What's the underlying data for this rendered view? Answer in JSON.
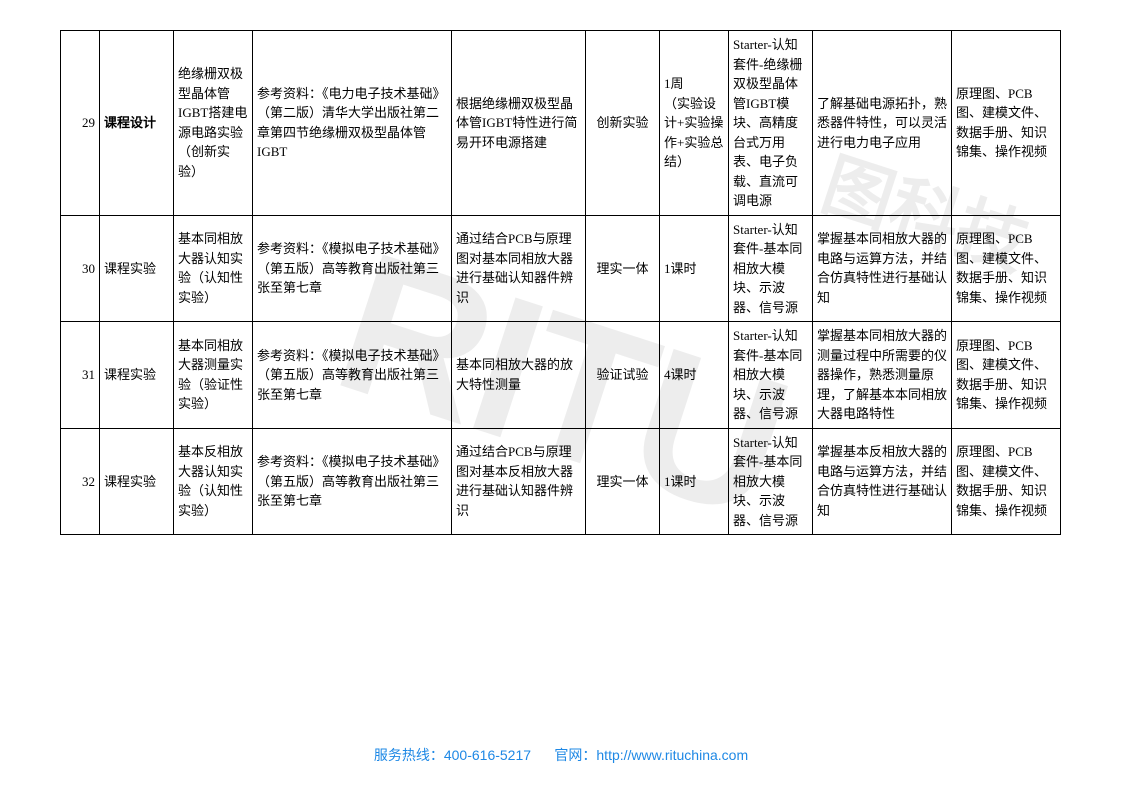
{
  "watermark_latin": "RITU",
  "watermark_cn": "图科技",
  "footer": {
    "hotline_label": "服务热线：",
    "hotline_number": "400-616-5217",
    "site_label": "官网：",
    "site_url": "http://www.rituchina.com"
  },
  "table": {
    "columns": [
      "seq",
      "category",
      "name",
      "reference",
      "content",
      "type",
      "duration",
      "equipment",
      "objective",
      "materials"
    ],
    "rows": [
      {
        "seq": "29",
        "category": "课程设计",
        "category_bold": true,
        "name": "绝缘栅双极型晶体管IGBT搭建电源电路实验（创新实验）",
        "reference": "参考资料：《电力电子技术基础》（第二版）清华大学出版社第二章第四节绝缘栅双极型晶体管IGBT",
        "content": "根据绝缘栅双极型晶体管IGBT特性进行简易开环电源搭建",
        "type": "创新实验",
        "duration": "1周\n（实验设计+实验操作+实验总结）",
        "equipment": "Starter-认知套件-绝缘栅双极型晶体管IGBT模块、高精度台式万用表、电子负载、直流可调电源",
        "objective": "了解基础电源拓扑，熟悉器件特性，可以灵活进行电力电子应用",
        "materials": "原理图、PCB图、建模文件、数据手册、知识锦集、操作视频"
      },
      {
        "seq": "30",
        "category": "课程实验",
        "name": "基本同相放大器认知实验（认知性实验）",
        "reference": "参考资料：《模拟电子技术基础》（第五版）高等教育出版社第三张至第七章",
        "content": "通过结合PCB与原理图对基本同相放大器进行基础认知器件辨识",
        "type": "理实一体",
        "duration": "1课时",
        "equipment": "Starter-认知套件-基本同相放大模块、示波器、信号源",
        "objective": "掌握基本同相放大器的电路与运算方法，并结合仿真特性进行基础认知",
        "materials": "原理图、PCB图、建模文件、数据手册、知识锦集、操作视频"
      },
      {
        "seq": "31",
        "category": "课程实验",
        "name": "基本同相放大器测量实验（验证性实验）",
        "reference": "参考资料：《模拟电子技术基础》（第五版）高等教育出版社第三张至第七章",
        "content": "基本同相放大器的放大特性测量",
        "type": "验证试验",
        "duration": "4课时",
        "equipment": "Starter-认知套件-基本同相放大模块、示波器、信号源",
        "objective": "掌握基本同相放大器的测量过程中所需要的仪器操作，熟悉测量原理，了解基本本同相放大器电路特性",
        "materials": "原理图、PCB图、建模文件、数据手册、知识锦集、操作视频"
      },
      {
        "seq": "32",
        "category": "课程实验",
        "name": "基本反相放大器认知实验（认知性实验）",
        "reference": "参考资料：《模拟电子技术基础》（第五版）高等教育出版社第三张至第七章",
        "content": "通过结合PCB与原理图对基本反相放大器进行基础认知器件辨识",
        "type": "理实一体",
        "duration": "1课时",
        "equipment": "Starter-认知套件-基本同相放大模块、示波器、信号源",
        "objective": "掌握基本反相放大器的电路与运算方法，并结合仿真特性进行基础认知",
        "materials": "原理图、PCB图、建模文件、数据手册、知识锦集、操作视频"
      }
    ]
  }
}
